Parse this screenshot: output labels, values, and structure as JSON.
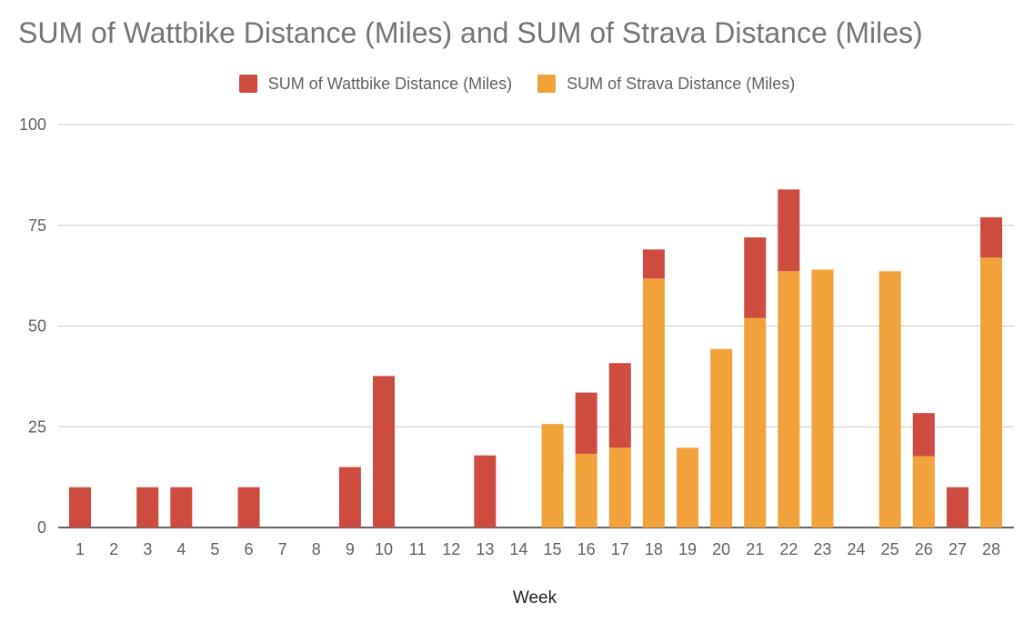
{
  "chart_data": {
    "type": "bar",
    "stacked": true,
    "title": "SUM of Wattbike Distance (Miles) and SUM of Strava Distance (Miles)",
    "xlabel": "Week",
    "ylabel": "",
    "ylim": [
      0,
      100
    ],
    "yticks": [
      0,
      25,
      50,
      75,
      100
    ],
    "grid": true,
    "legend_position": "top-center",
    "categories": [
      "1",
      "2",
      "3",
      "4",
      "5",
      "6",
      "7",
      "8",
      "9",
      "10",
      "11",
      "12",
      "13",
      "14",
      "15",
      "16",
      "17",
      "18",
      "19",
      "20",
      "21",
      "22",
      "23",
      "24",
      "25",
      "26",
      "27",
      "28"
    ],
    "series": [
      {
        "name": "SUM of Strava Distance (Miles)",
        "color": "#F2A23A",
        "values": [
          0,
          0,
          0,
          0,
          0,
          0,
          0,
          0,
          0,
          0,
          0,
          0,
          0,
          0,
          25.7,
          18.3,
          19.8,
          61.8,
          19.8,
          44.3,
          52,
          63.6,
          64,
          0,
          63.6,
          17.7,
          0,
          67
        ]
      },
      {
        "name": "SUM of Wattbike Distance (Miles)",
        "color": "#CD4B3F",
        "values": [
          10,
          0,
          10,
          10,
          0,
          10,
          0,
          0,
          15,
          37.6,
          0,
          0,
          17.9,
          0,
          0,
          15.2,
          21,
          7.2,
          0,
          0,
          20,
          20.3,
          0,
          0,
          0,
          10.7,
          10,
          10
        ]
      }
    ],
    "legend": [
      {
        "label": "SUM of Wattbike Distance (Miles)",
        "color": "#CD4B3F"
      },
      {
        "label": "SUM of Strava Distance (Miles)",
        "color": "#F2A23A"
      }
    ]
  }
}
